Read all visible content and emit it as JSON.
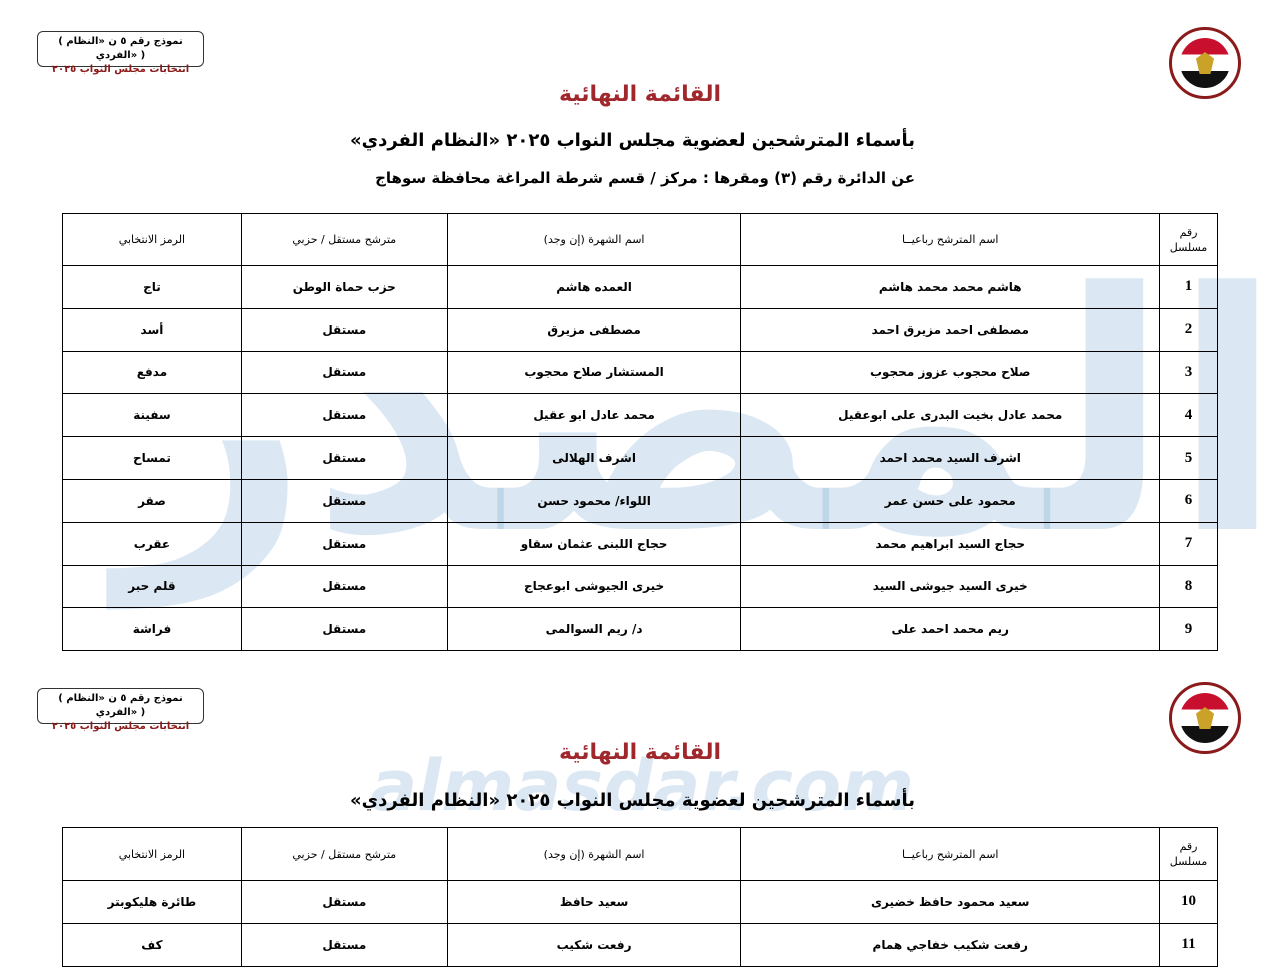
{
  "form_box": {
    "line1": "( نموذج رقم ٥ ن «النظام الفردي» )",
    "line2": "انتخابات مجلس النواب ٢٠٢٥"
  },
  "logo_text": "National Election Authority Egypt",
  "page1": {
    "title": "القائمة النهائية",
    "subtitle": "بأسماء المترشحين لعضوية مجلس النواب ٢٠٢٥ «النظام الفردي»",
    "district": "عن الدائرة رقم (٣)   ومقرها : مركز / قسم شرطة المراغة   محافظة سوهاج"
  },
  "table_headers": {
    "serial": "رقم مسلسل",
    "name": "اسم المترشح رباعيــا",
    "alias": "اسم الشهرة (إن وجد)",
    "type": "مترشح مستقل / حزبي",
    "symbol": "الرمز الانتخابي"
  },
  "rows_page1": [
    {
      "n": "1",
      "name": "هاشم محمد محمد هاشم",
      "alias": "العمده هاشم",
      "type": "حزب حماة الوطن",
      "symbol": "تاج"
    },
    {
      "n": "2",
      "name": "مصطفى احمد مزيرق احمد",
      "alias": "مصطفى مزيرق",
      "type": "مستقل",
      "symbol": "أسد"
    },
    {
      "n": "3",
      "name": "صلاح محجوب عزوز محجوب",
      "alias": "المستشار صلاح محجوب",
      "type": "مستقل",
      "symbol": "مدفع"
    },
    {
      "n": "4",
      "name": "محمد عادل بخيت البدرى على ابوعقيل",
      "alias": "محمد عادل ابو عقيل",
      "type": "مستقل",
      "symbol": "سفينة"
    },
    {
      "n": "5",
      "name": "اشرف السيد محمد احمد",
      "alias": "اشرف الهلالى",
      "type": "مستقل",
      "symbol": "تمساح"
    },
    {
      "n": "6",
      "name": "محمود على حسن عمر",
      "alias": "اللواء/ محمود حسن",
      "type": "مستقل",
      "symbol": "صقر"
    },
    {
      "n": "7",
      "name": "حجاج السيد ابراهيم محمد",
      "alias": "حجاج اللبنى عثمان سقاو",
      "type": "مستقل",
      "symbol": "عقرب"
    },
    {
      "n": "8",
      "name": "خيرى السيد جيوشى السيد",
      "alias": "خيرى الجيوشى ابوعجاج",
      "type": "مستقل",
      "symbol": "قلم حبر"
    },
    {
      "n": "9",
      "name": "ريم محمد احمد على",
      "alias": "د/ ريم السوالمى",
      "type": "مستقل",
      "symbol": "فراشة"
    }
  ],
  "page2": {
    "title": "القائمة النهائية",
    "subtitle": "بأسماء المترشحين لعضوية مجلس النواب ٢٠٢٥ «النظام الفردي»"
  },
  "rows_page2": [
    {
      "n": "10",
      "name": "سعيد محمود حافظ خضيرى",
      "alias": "سعيد حافظ",
      "type": "مستقل",
      "symbol": "طائرة هليكوبتر"
    },
    {
      "n": "11",
      "name": "رفعت شكيب خفاجي همام",
      "alias": "رفعت شكيب",
      "type": "مستقل",
      "symbol": "كف"
    }
  ],
  "watermark": {
    "arabic": "المصدر",
    "latin": "almasdar.com"
  }
}
